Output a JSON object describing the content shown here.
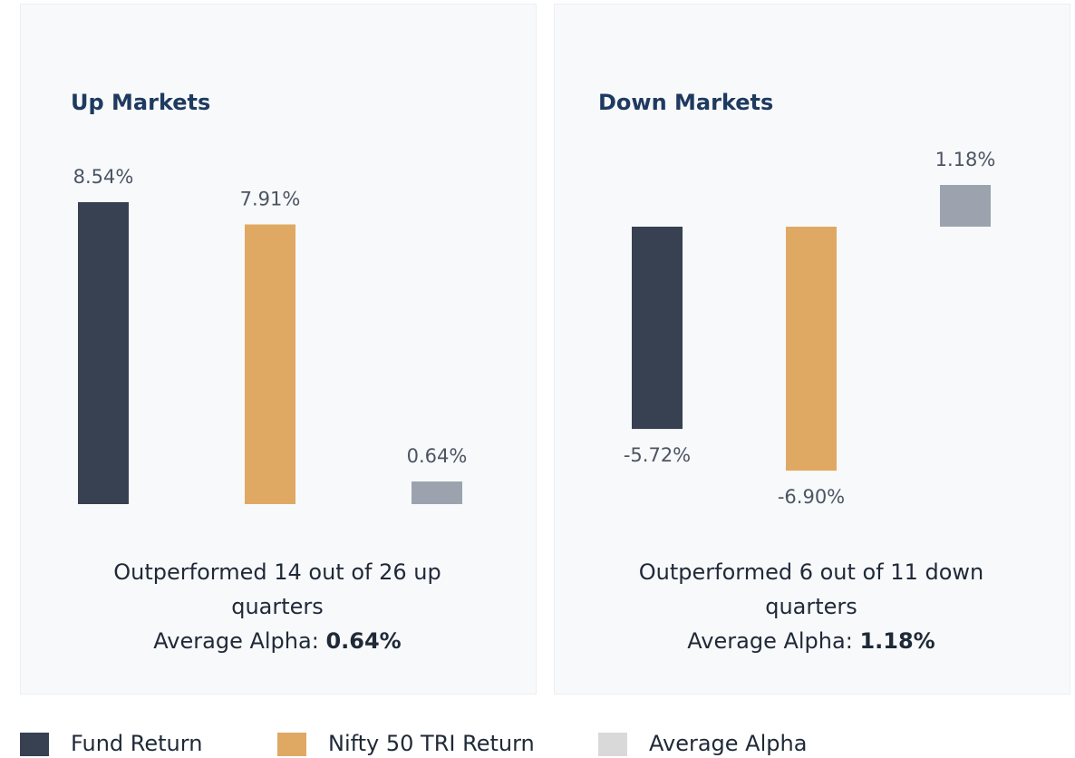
{
  "chart_data": [
    {
      "type": "bar",
      "title": "Up Markets",
      "categories": [
        null,
        null,
        null
      ],
      "values": [
        8.54,
        7.91,
        0.64
      ],
      "value_labels": [
        "8.54%",
        "7.91%",
        "0.64%"
      ],
      "colors": [
        "#374151",
        "#e0a963",
        "#9ca3af"
      ],
      "summary": "Outperformed 14 out of 26 up quarters",
      "alpha_label": "Average Alpha:",
      "alpha_value": "0.64%"
    },
    {
      "type": "bar",
      "title": "Down Markets",
      "categories": [
        null,
        null,
        null
      ],
      "values": [
        -5.72,
        -6.9,
        1.18
      ],
      "value_labels": [
        "-5.72%",
        "-6.90%",
        "1.18%"
      ],
      "colors": [
        "#374151",
        "#e0a963",
        "#9ca3af"
      ],
      "summary": "Outperformed 6 out of 11 down quarters",
      "alpha_label": "Average Alpha:",
      "alpha_value": "1.18%"
    }
  ],
  "legend": [
    {
      "name": "Fund Return",
      "color": "#374151"
    },
    {
      "name": "Nifty 50 TRI Return",
      "color": "#e0a963"
    },
    {
      "name": "Average Alpha",
      "color": "#d9d9d9"
    }
  ]
}
